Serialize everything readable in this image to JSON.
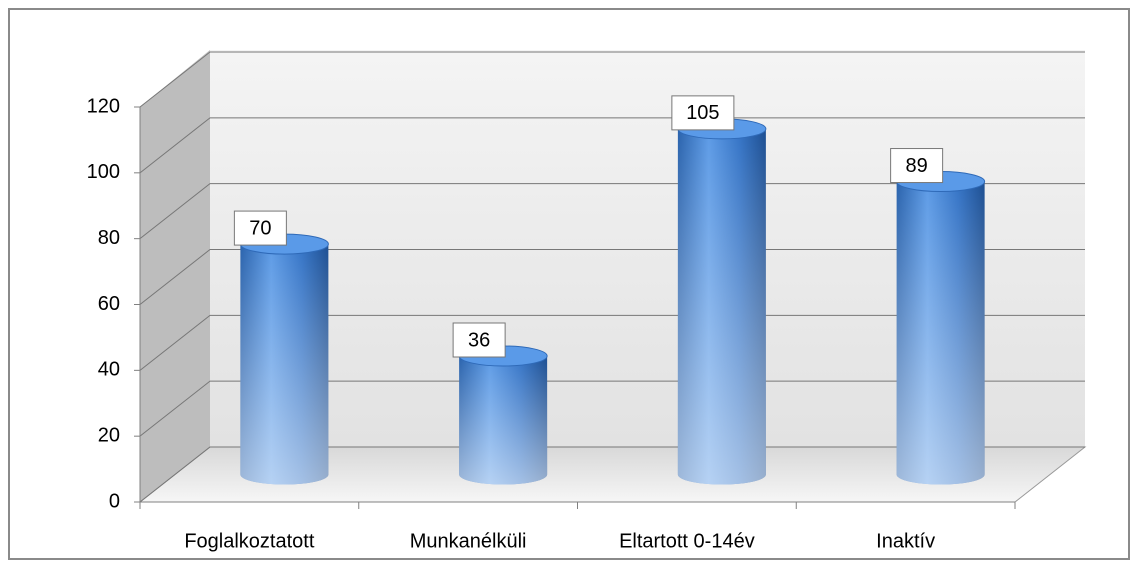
{
  "chart_data": {
    "type": "bar",
    "categories": [
      "Foglalkoztatott",
      "Munkanélküli",
      "Eltartott 0-14év",
      "Inaktív"
    ],
    "values": [
      70,
      36,
      105,
      89
    ],
    "color": "#3f7fd0",
    "ylim": [
      0,
      120
    ],
    "yticks": [
      0,
      20,
      40,
      60,
      80,
      100,
      120
    ],
    "grid": true
  }
}
